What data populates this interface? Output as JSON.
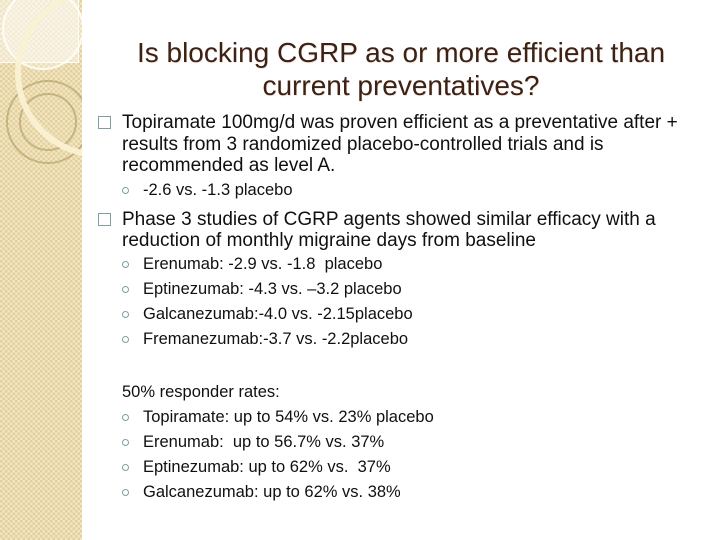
{
  "slide": {
    "title": {
      "lines": [
        "Is blocking CGRP as or more efficient than",
        "current preventatives?"
      ]
    },
    "bullets": [
      {
        "text": "Topiramate 100mg/d was proven efficient as a preventative after + results from 3 randomized placebo-controlled trials and is  recommended as level A.",
        "subs": [
          "-2.6 vs. -1.3 placebo"
        ]
      },
      {
        "text": "Phase 3 studies of CGRP agents showed similar efficacy with a reduction of monthly migraine days from baseline",
        "subs": [
          "Erenumab: -2.9 vs. -1.8  placebo",
          "Eptinezumab: -4.3 vs. –3.2 placebo",
          "Galcanezumab:-4.0 vs. -2.15placebo",
          "Fremanezumab:-3.7 vs. -2.2placebo"
        ]
      }
    ],
    "responder": {
      "heading": "50% responder rates:",
      "subs": [
        "Topiramate: up to 54% vs. 23% placebo",
        "Erenumab:  up to 56.7% vs. 37%",
        "Eptinezumab: up to 62% vs.  37%",
        "Galcanezumab: up to 62% vs. 38%"
      ]
    },
    "colors": {
      "title_text": "#3D2114",
      "body_text": "#101010",
      "bullet_marker": "#7C9FA2",
      "sidebar_check_light": "#F1E6C4",
      "sidebar_check_dark": "#E3D09C",
      "sidebar_arc_cream": "#FAF1D3",
      "background": "#FFFFFF"
    }
  }
}
